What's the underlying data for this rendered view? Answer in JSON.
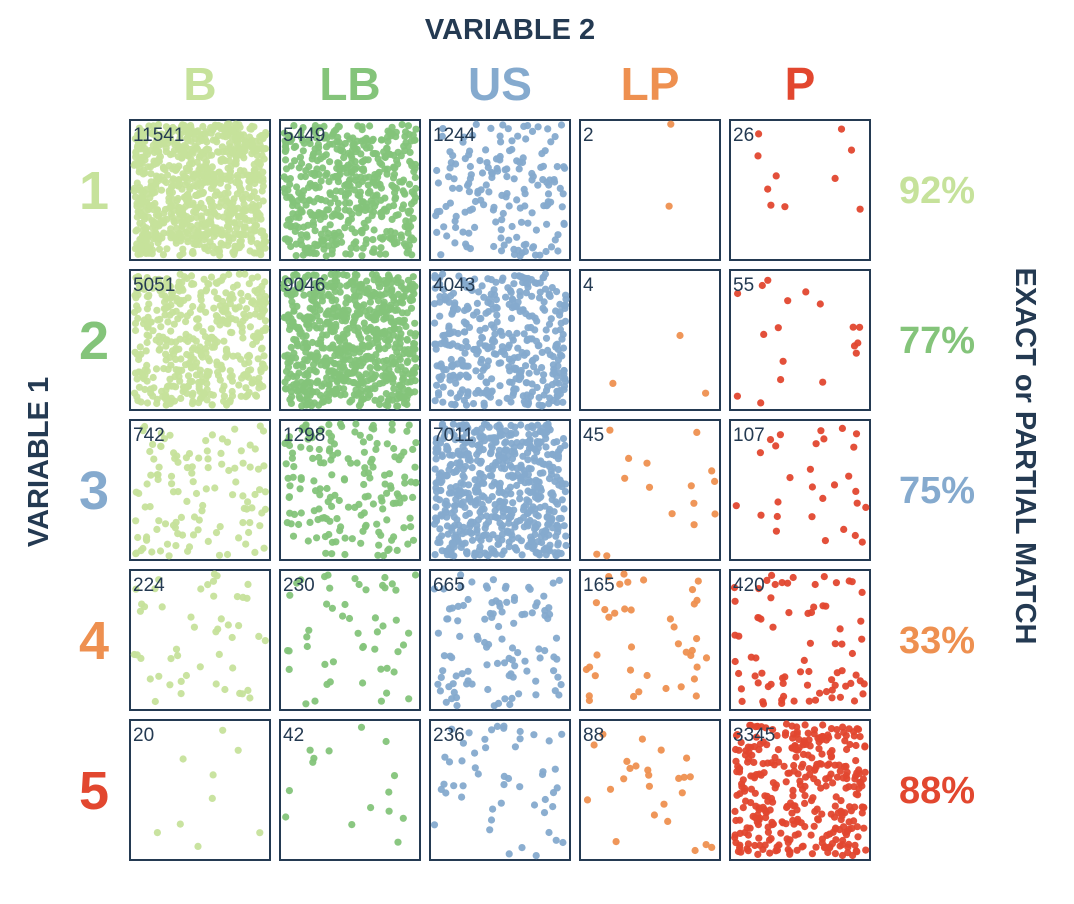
{
  "chart_data": {
    "type": "scatter",
    "x_title": "VARIABLE 2",
    "y_title": "VARIABLE 1",
    "right_title": "EXACT or PARTIAL MATCH",
    "col_labels": [
      "B",
      "LB",
      "US",
      "LP",
      "P"
    ],
    "row_labels": [
      "1",
      "2",
      "3",
      "4",
      "5"
    ],
    "counts": [
      [
        11541,
        5449,
        1244,
        2,
        26
      ],
      [
        5051,
        9046,
        4043,
        4,
        55
      ],
      [
        742,
        1298,
        7011,
        45,
        107
      ],
      [
        224,
        230,
        665,
        165,
        420
      ],
      [
        20,
        42,
        236,
        88,
        3345
      ]
    ],
    "match_percent": [
      "92%",
      "77%",
      "75%",
      "33%",
      "88%"
    ],
    "colors": [
      "#c6e29b",
      "#84c47a",
      "#85aace",
      "#ee9050",
      "#e2472f"
    ],
    "title_color": "#243a52"
  }
}
